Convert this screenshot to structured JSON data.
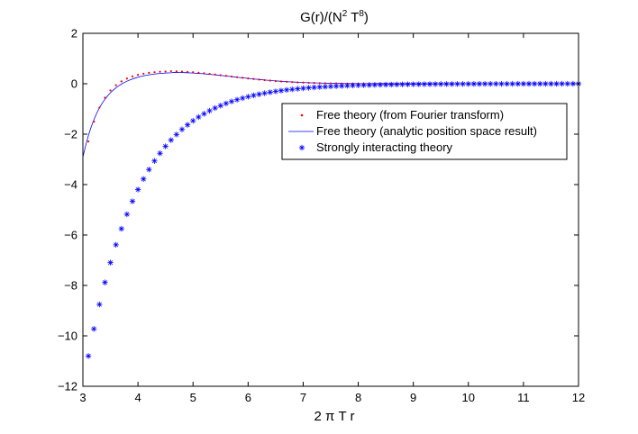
{
  "chart_data": {
    "type": "line",
    "title": "G(r)/(N² T⁸)",
    "title_parts": {
      "prefix": "G(r)/(N",
      "sup1": "2",
      "mid": " T",
      "sup2": "8",
      "suffix": ")"
    },
    "xlabel": "2 π T r",
    "ylabel": "",
    "xlim": [
      3,
      12
    ],
    "ylim": [
      -12,
      2
    ],
    "xticks": [
      3,
      4,
      5,
      6,
      7,
      8,
      9,
      10,
      11,
      12
    ],
    "yticks": [
      -12,
      -10,
      -8,
      -6,
      -4,
      -2,
      0,
      2
    ],
    "grid": false,
    "legend_position": "center-right",
    "series": [
      {
        "name": "Free theory (from Fourier transform)",
        "style": "dots",
        "color": "#ff0000",
        "x_start": 3.1,
        "x_end": 12.0,
        "x_step": 0.1,
        "model": "free_fourier"
      },
      {
        "name": "Free theory (analytic position space result)",
        "style": "line",
        "color": "#0000ff",
        "x_start": 3.0,
        "x_end": 12.0,
        "x_step": 0.05,
        "model": "free_analytic"
      },
      {
        "name": "Strongly interacting theory",
        "style": "asterisk",
        "color": "#0000ff",
        "x_start": 3.1,
        "x_end": 12.0,
        "x_step": 0.1,
        "model": "strong",
        "sample_points": [
          [
            3.1,
            -10.8
          ],
          [
            3.2,
            -9.75
          ],
          [
            3.3,
            -8.8
          ],
          [
            3.4,
            -7.95
          ],
          [
            3.5,
            -7.15
          ],
          [
            3.6,
            -6.45
          ],
          [
            3.7,
            -5.8
          ],
          [
            3.8,
            -5.2
          ],
          [
            4.0,
            -4.2
          ],
          [
            4.5,
            -2.5
          ],
          [
            5.0,
            -1.55
          ],
          [
            6.0,
            -0.55
          ],
          [
            7.0,
            -0.2
          ],
          [
            8.0,
            -0.05
          ],
          [
            12.0,
            0.0
          ]
        ]
      }
    ]
  }
}
